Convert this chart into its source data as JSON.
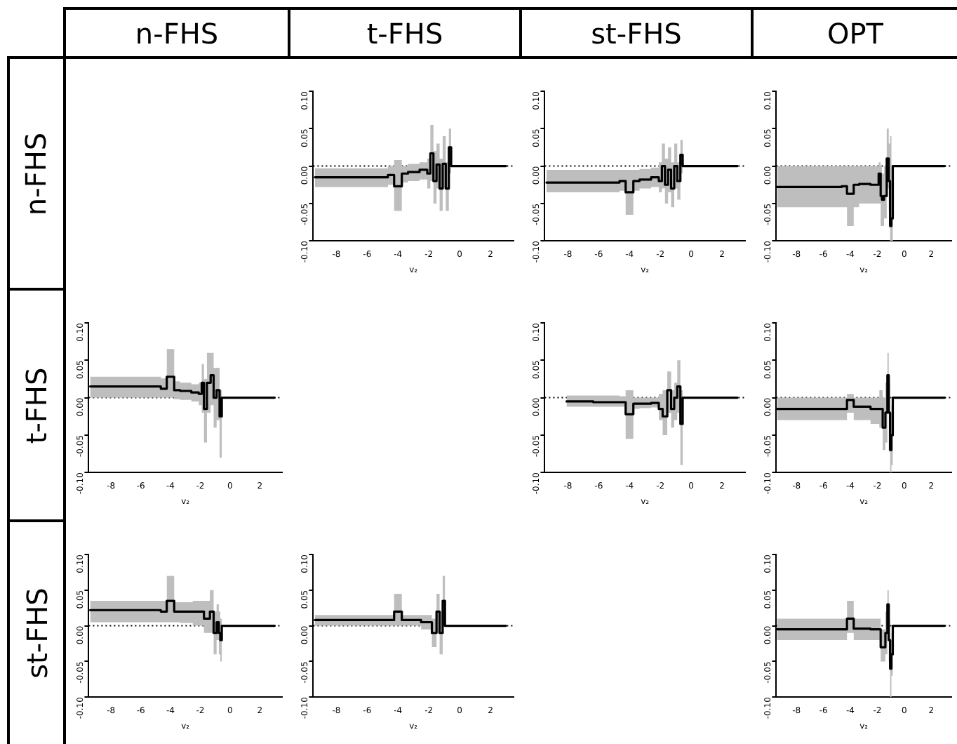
{
  "chart_data": [
    {
      "type": "other",
      "annotations": [
        "n-FHS",
        "t-FHS",
        "st-FHS",
        "OPT"
      ]
    },
    {
      "type": "other",
      "annotations": [
        "n-FHS",
        "t-FHS",
        "st-FHS"
      ]
    },
    {
      "type": "step",
      "xlabel": "v₂",
      "xlim": [
        -9.5,
        3.5
      ],
      "ylim": [
        -0.1,
        0.1
      ],
      "xticks": [
        -8,
        -6,
        -4,
        -2,
        0,
        2
      ],
      "yticks": [
        {
          "value": -0.1,
          "label": "-0.10"
        },
        {
          "value": -0.05,
          "label": "-0.05"
        },
        {
          "value": 0,
          "label": "0.00"
        },
        {
          "value": 0.05,
          "label": "0.05"
        },
        {
          "value": 0.1,
          "label": "0.10"
        }
      ],
      "grid": false,
      "ref_lines": [
        {
          "axis": "y",
          "value": 0,
          "line_style": "dotted"
        }
      ],
      "series": [
        {
          "color": "#000000",
          "x": [
            -9,
            -5,
            -4.3,
            -4.2,
            -3.8,
            -3.7,
            -3,
            -2.2,
            -2,
            -1.8,
            -1.6,
            -1.4,
            -1.2,
            -1,
            -0.8,
            -0.6,
            -0.5,
            3
          ],
          "values": [
            -0.015,
            -0.015,
            -0.012,
            -0.027,
            -0.027,
            -0.01,
            -0.008,
            -0.005,
            -0.01,
            0.017,
            -0.02,
            0.002,
            -0.03,
            0.003,
            -0.03,
            0.025,
            0,
            0
          ],
          "lower": [
            -0.028,
            -0.028,
            -0.025,
            -0.06,
            -0.06,
            -0.022,
            -0.02,
            -0.018,
            -0.03,
            -0.02,
            -0.05,
            -0.03,
            -0.06,
            -0.03,
            -0.06,
            -0.01,
            0,
            0
          ],
          "upper": [
            -0.003,
            -0.003,
            0,
            0.008,
            0.008,
            0,
            0.003,
            0.005,
            0.01,
            0.055,
            0.02,
            0.03,
            0.01,
            0.04,
            0.005,
            0.05,
            0,
            0
          ]
        }
      ]
    },
    {
      "type": "step",
      "xlabel": "v₂",
      "xlim": [
        -9.5,
        3.5
      ],
      "ylim": [
        -0.1,
        0.1
      ],
      "xticks": [
        -8,
        -6,
        -4,
        -2,
        0,
        2
      ],
      "yticks": [
        {
          "value": -0.1,
          "label": "-0.10"
        },
        {
          "value": -0.05,
          "label": "-0.05"
        },
        {
          "value": 0,
          "label": "0.00"
        },
        {
          "value": 0.05,
          "label": "0.05"
        },
        {
          "value": 0.1,
          "label": "0.10"
        }
      ],
      "grid": false,
      "ref_lines": [
        {
          "axis": "y",
          "value": 0,
          "line_style": "dotted"
        }
      ],
      "series": [
        {
          "color": "#000000",
          "x": [
            -9,
            -5,
            -4.3,
            -4.2,
            -3.8,
            -3.7,
            -3,
            -2.2,
            -2,
            -1.8,
            -1.6,
            -1.4,
            -1.2,
            -1,
            -0.8,
            -0.6,
            -0.5,
            3
          ],
          "values": [
            -0.022,
            -0.022,
            -0.02,
            -0.035,
            -0.035,
            -0.02,
            -0.018,
            -0.015,
            -0.02,
            0,
            -0.025,
            -0.005,
            -0.03,
            0,
            -0.02,
            0.015,
            0,
            0
          ],
          "lower": [
            -0.035,
            -0.035,
            -0.033,
            -0.065,
            -0.065,
            -0.033,
            -0.03,
            -0.028,
            -0.035,
            -0.03,
            -0.05,
            -0.035,
            -0.055,
            -0.03,
            -0.045,
            -0.01,
            0,
            0
          ],
          "upper": [
            -0.005,
            -0.005,
            -0.005,
            -0.005,
            -0.005,
            -0.005,
            -0.004,
            -0.002,
            0.005,
            0.03,
            0.01,
            0.025,
            0.005,
            0.03,
            0.005,
            0.035,
            0,
            0
          ]
        }
      ]
    },
    {
      "type": "step",
      "xlabel": "v₂",
      "xlim": [
        -9.5,
        3.5
      ],
      "ylim": [
        -0.1,
        0.1
      ],
      "xticks": [
        -8,
        -6,
        -4,
        -2,
        0,
        2
      ],
      "yticks": [
        {
          "value": -0.1,
          "label": "-0.10"
        },
        {
          "value": -0.05,
          "label": "-0.05"
        },
        {
          "value": 0,
          "label": "0.00"
        },
        {
          "value": 0.05,
          "label": "0.05"
        },
        {
          "value": 0.1,
          "label": "0.10"
        }
      ],
      "grid": false,
      "ref_lines": [
        {
          "axis": "y",
          "value": 0,
          "line_style": "dotted"
        }
      ],
      "series": [
        {
          "color": "#000000",
          "x": [
            -9,
            -5,
            -4.3,
            -4.2,
            -3.8,
            -3.7,
            -3,
            -2,
            -1.8,
            -1.7,
            -1.6,
            -1.4,
            -1.2,
            -1.1,
            -1,
            -0.9,
            -0.8,
            3
          ],
          "values": [
            -0.028,
            -0.028,
            -0.027,
            -0.037,
            -0.037,
            -0.025,
            -0.024,
            -0.025,
            -0.01,
            -0.04,
            -0.045,
            -0.04,
            0.01,
            -0.02,
            -0.08,
            -0.07,
            0,
            0
          ],
          "lower": [
            -0.055,
            -0.055,
            -0.055,
            -0.08,
            -0.08,
            -0.055,
            -0.05,
            -0.05,
            -0.05,
            -0.08,
            -0.08,
            -0.07,
            -0.03,
            -0.06,
            -0.1,
            -0.1,
            0,
            0
          ],
          "upper": [
            0,
            0,
            0,
            0,
            0,
            0,
            0,
            0,
            0.005,
            0,
            -0.01,
            0,
            0.05,
            0.03,
            0.04,
            0,
            0,
            0
          ]
        }
      ]
    },
    {
      "type": "step",
      "xlabel": "v₂",
      "xlim": [
        -9.5,
        3.5
      ],
      "ylim": [
        -0.1,
        0.1
      ],
      "xticks": [
        -8,
        -6,
        -4,
        -2,
        0,
        2
      ],
      "yticks": [
        {
          "value": -0.1,
          "label": "-0.10"
        },
        {
          "value": -0.05,
          "label": "-0.05"
        },
        {
          "value": 0,
          "label": "0.00"
        },
        {
          "value": 0.05,
          "label": "0.05"
        },
        {
          "value": 0.1,
          "label": "0.10"
        }
      ],
      "grid": false,
      "ref_lines": [
        {
          "axis": "y",
          "value": 0,
          "line_style": "dotted"
        }
      ],
      "series": [
        {
          "color": "#000000",
          "x": [
            -9,
            -5,
            -4.3,
            -4.2,
            -3.8,
            -3.7,
            -3,
            -2.2,
            -2,
            -1.8,
            -1.7,
            -1.4,
            -1.2,
            -1,
            -0.8,
            -0.6,
            -0.5,
            3
          ],
          "values": [
            0.015,
            0.015,
            0.012,
            0.028,
            0.028,
            0.01,
            0.009,
            0.007,
            0.005,
            0.02,
            -0.015,
            0.02,
            0.03,
            0,
            0.01,
            -0.025,
            0,
            0
          ],
          "lower": [
            0,
            0,
            0,
            0,
            0,
            -0.002,
            -0.003,
            -0.005,
            -0.01,
            -0.02,
            -0.06,
            -0.02,
            -0.01,
            -0.04,
            -0.03,
            -0.08,
            0,
            0
          ],
          "upper": [
            0.028,
            0.028,
            0.026,
            0.065,
            0.065,
            0.022,
            0.02,
            0.018,
            0.02,
            0.045,
            0.025,
            0.06,
            0.06,
            0.04,
            0.04,
            0.01,
            0,
            0
          ]
        }
      ]
    },
    {
      "type": "step",
      "xlabel": "v₂",
      "xlim": [
        -9.5,
        3.5
      ],
      "ylim": [
        -0.1,
        0.1
      ],
      "xticks": [
        -8,
        -6,
        -4,
        -2,
        0,
        2
      ],
      "yticks": [
        {
          "value": -0.1,
          "label": "-0.10"
        },
        {
          "value": -0.05,
          "label": "-0.05"
        },
        {
          "value": 0,
          "label": "0.00"
        },
        {
          "value": 0.05,
          "label": "0.05"
        },
        {
          "value": 0.1,
          "label": "0.10"
        }
      ],
      "grid": false,
      "ref_lines": [
        {
          "axis": "y",
          "value": 0,
          "line_style": "dotted"
        }
      ],
      "series": [
        {
          "color": "#000000",
          "x": [
            -7.7,
            -5,
            -4.3,
            -4.2,
            -3.8,
            -3.7,
            -3,
            -2.2,
            -2,
            -1.7,
            -1.4,
            -1.2,
            -1,
            -0.8,
            -0.6,
            -0.5,
            3
          ],
          "values": [
            -0.005,
            -0.006,
            -0.006,
            -0.022,
            -0.022,
            -0.008,
            -0.008,
            -0.007,
            -0.015,
            -0.025,
            0.01,
            -0.015,
            0,
            0.015,
            -0.035,
            0,
            0
          ],
          "lower": [
            -0.012,
            -0.012,
            -0.012,
            -0.055,
            -0.055,
            -0.015,
            -0.014,
            -0.013,
            -0.03,
            -0.05,
            -0.02,
            -0.04,
            -0.03,
            -0.02,
            -0.09,
            0,
            0
          ],
          "upper": [
            0.003,
            0.003,
            0.002,
            0.01,
            0.01,
            0,
            0,
            0,
            0.005,
            0.01,
            0.035,
            0.01,
            0.02,
            0.05,
            0.01,
            0,
            0
          ]
        }
      ]
    },
    {
      "type": "step",
      "xlabel": "v₂",
      "xlim": [
        -9.5,
        3.5
      ],
      "ylim": [
        -0.1,
        0.1
      ],
      "xticks": [
        -8,
        -6,
        -4,
        -2,
        0,
        2
      ],
      "yticks": [
        {
          "value": -0.1,
          "label": "-0.10"
        },
        {
          "value": -0.05,
          "label": "-0.05"
        },
        {
          "value": 0,
          "label": "0.00"
        },
        {
          "value": 0.05,
          "label": "0.05"
        },
        {
          "value": 0.1,
          "label": "0.10"
        }
      ],
      "grid": false,
      "ref_lines": [
        {
          "axis": "y",
          "value": 0,
          "line_style": "dotted"
        }
      ],
      "series": [
        {
          "color": "#000000",
          "x": [
            -9,
            -5,
            -4.3,
            -4.2,
            -3.8,
            -3.7,
            -3,
            -2,
            -1.7,
            -1.5,
            -1.3,
            -1.2,
            -1.1,
            -1,
            -0.9,
            -0.8,
            3
          ],
          "values": [
            -0.015,
            -0.015,
            -0.015,
            -0.003,
            -0.003,
            -0.012,
            -0.012,
            -0.015,
            -0.015,
            -0.04,
            -0.02,
            0.03,
            -0.02,
            -0.07,
            -0.05,
            0,
            0
          ],
          "lower": [
            -0.03,
            -0.03,
            -0.03,
            -0.02,
            -0.02,
            -0.03,
            -0.03,
            -0.035,
            -0.04,
            -0.07,
            -0.06,
            -0.01,
            -0.07,
            -0.1,
            -0.09,
            0,
            0
          ],
          "upper": [
            0,
            0,
            0,
            0.005,
            0.005,
            0,
            0,
            0,
            0.01,
            0,
            0.02,
            0.06,
            0.02,
            -0.02,
            -0.01,
            0,
            0
          ]
        }
      ]
    },
    {
      "type": "step",
      "xlabel": "v₂",
      "xlim": [
        -9.5,
        3.5
      ],
      "ylim": [
        -0.1,
        0.1
      ],
      "xticks": [
        -8,
        -6,
        -4,
        -2,
        0,
        2
      ],
      "yticks": [
        {
          "value": -0.1,
          "label": "-0.10"
        },
        {
          "value": -0.05,
          "label": "-0.05"
        },
        {
          "value": 0,
          "label": "0.00"
        },
        {
          "value": 0.05,
          "label": "0.05"
        },
        {
          "value": 0.1,
          "label": "0.10"
        }
      ],
      "grid": false,
      "ref_lines": [
        {
          "axis": "y",
          "value": 0,
          "line_style": "dotted"
        }
      ],
      "series": [
        {
          "color": "#000000",
          "x": [
            -9,
            -5,
            -4.3,
            -4.2,
            -3.8,
            -3.7,
            -3,
            -2,
            -1.5,
            -1.2,
            -1,
            -0.8,
            -0.7,
            -0.6,
            -0.5,
            3
          ],
          "values": [
            0.022,
            0.022,
            0.02,
            0.035,
            0.035,
            0.02,
            0.02,
            0.02,
            0.01,
            0.02,
            -0.01,
            0.005,
            -0.01,
            -0.02,
            0,
            0
          ],
          "lower": [
            0.005,
            0.005,
            0.005,
            0.005,
            0.005,
            0.005,
            0.004,
            0,
            -0.01,
            -0.01,
            -0.04,
            -0.02,
            -0.04,
            -0.05,
            0,
            0
          ],
          "upper": [
            0.035,
            0.035,
            0.035,
            0.07,
            0.07,
            0.033,
            0.033,
            0.035,
            0.035,
            0.05,
            0.02,
            0.03,
            0.02,
            0.01,
            0,
            0
          ]
        }
      ]
    },
    {
      "type": "step",
      "xlabel": "v₂",
      "xlim": [
        -9.5,
        3.5
      ],
      "ylim": [
        -0.1,
        0.1
      ],
      "xticks": [
        -8,
        -6,
        -4,
        -2,
        0,
        2
      ],
      "yticks": [
        {
          "value": -0.1,
          "label": "-0.10"
        },
        {
          "value": -0.05,
          "label": "-0.05"
        },
        {
          "value": 0,
          "label": "0.00"
        },
        {
          "value": 0.05,
          "label": "0.05"
        },
        {
          "value": 0.1,
          "label": "0.10"
        }
      ],
      "grid": false,
      "ref_lines": [
        {
          "axis": "y",
          "value": 0,
          "line_style": "dotted"
        }
      ],
      "series": [
        {
          "color": "#000000",
          "x": [
            -9,
            -5,
            -4.3,
            -4.2,
            -3.8,
            -3.7,
            -3,
            -2,
            -1.6,
            -1.4,
            -1.2,
            -1,
            -0.9,
            3
          ],
          "values": [
            0.008,
            0.008,
            0.008,
            0.02,
            0.02,
            0.008,
            0.008,
            0.005,
            -0.01,
            0.02,
            -0.01,
            0.035,
            0,
            0
          ],
          "lower": [
            0,
            0,
            0,
            0,
            0,
            0,
            0,
            -0.005,
            -0.03,
            -0.01,
            -0.04,
            0,
            0,
            0
          ],
          "upper": [
            0.015,
            0.015,
            0.015,
            0.045,
            0.045,
            0.015,
            0.015,
            0.015,
            0.01,
            0.045,
            0.02,
            0.07,
            0,
            0
          ]
        }
      ]
    },
    {
      "type": "step",
      "xlabel": "v₂",
      "xlim": [
        -9.5,
        3.5
      ],
      "ylim": [
        -0.1,
        0.1
      ],
      "xticks": [
        -8,
        -6,
        -4,
        -2,
        0,
        2
      ],
      "yticks": [
        {
          "value": -0.1,
          "label": "-0.10"
        },
        {
          "value": -0.05,
          "label": "-0.05"
        },
        {
          "value": 0,
          "label": "0.00"
        },
        {
          "value": 0.05,
          "label": "0.05"
        },
        {
          "value": 0.1,
          "label": "0.10"
        }
      ],
      "grid": false,
      "ref_lines": [
        {
          "axis": "y",
          "value": 0,
          "line_style": "dotted"
        }
      ],
      "series": [
        {
          "color": "#000000",
          "x": [
            -9,
            -5,
            -4.3,
            -4.2,
            -3.8,
            -3.7,
            -3,
            -2,
            -1.5,
            -1.3,
            -1.2,
            -1.1,
            -1,
            -0.9,
            -0.8,
            3
          ],
          "values": [
            -0.005,
            -0.005,
            -0.005,
            0.01,
            0.01,
            -0.004,
            -0.004,
            -0.005,
            -0.03,
            -0.01,
            0.03,
            -0.02,
            -0.06,
            -0.04,
            0,
            0
          ],
          "lower": [
            -0.02,
            -0.02,
            -0.02,
            -0.01,
            -0.01,
            -0.02,
            -0.02,
            -0.02,
            -0.05,
            -0.04,
            0,
            -0.05,
            -0.1,
            -0.07,
            0,
            0
          ],
          "upper": [
            0.01,
            0.01,
            0.01,
            0.035,
            0.035,
            0.01,
            0.01,
            0.01,
            -0.005,
            0.02,
            0.05,
            0.01,
            -0.02,
            -0.01,
            0,
            0
          ]
        }
      ]
    }
  ]
}
